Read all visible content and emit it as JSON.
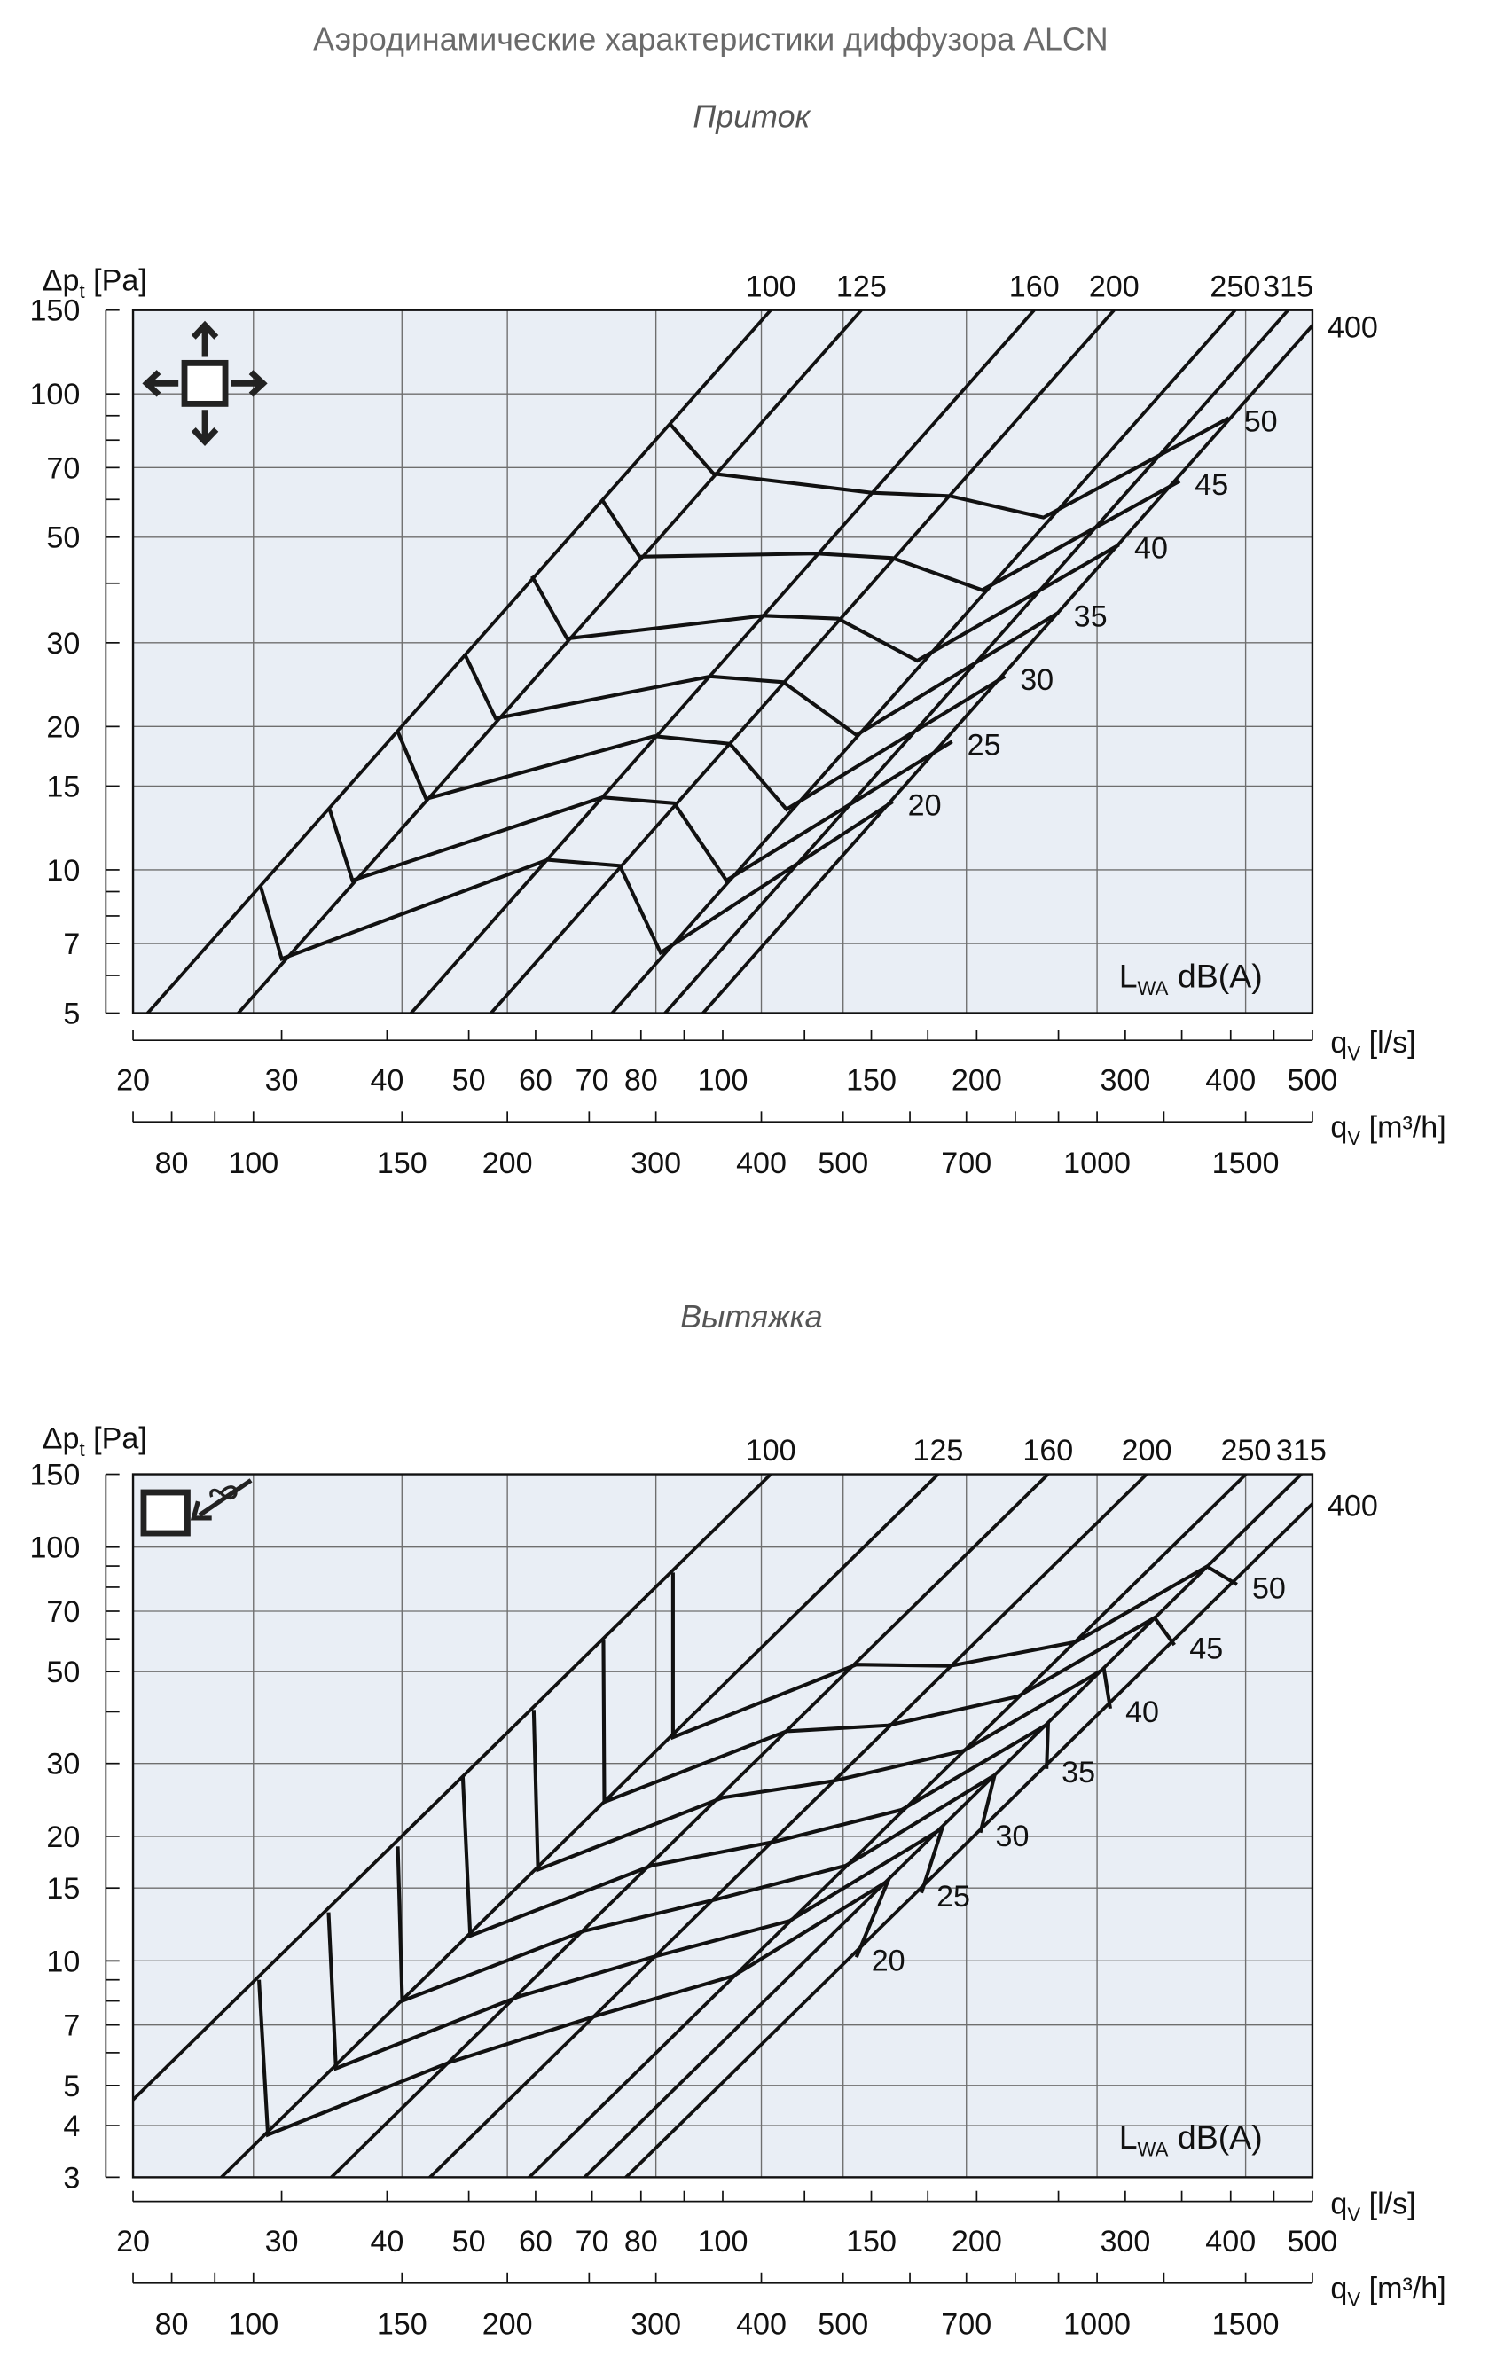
{
  "title": "Аэродинамические характеристики диффузора ALCN",
  "colors": {
    "plot_background": "#e9eef5",
    "grid": "#6e6e6e",
    "lines": "#111111",
    "title": "#6a6a6a"
  },
  "chart_data": [
    {
      "type": "line",
      "subtitle": "Приток",
      "icon": "supply-four-way-arrows-icon",
      "ylabel": {
        "main": "Δp",
        "sub": "t",
        "unit": " [Pa]"
      },
      "xlabel_ls": {
        "main": "q",
        "sub": "V",
        "unit": " [l/s]"
      },
      "xlabel_m3h": {
        "main": "q",
        "sub": "V",
        "unit": " [m³/h]"
      },
      "legend": {
        "main": "L",
        "sub": "WA",
        "unit": " dB(A)"
      },
      "scale": "log-log",
      "xlim": [
        20,
        500
      ],
      "ylim": [
        5,
        150
      ],
      "y_ticks": [
        5,
        7,
        10,
        15,
        20,
        30,
        50,
        70,
        100,
        150
      ],
      "y_minor_ticks": [
        6,
        8,
        9,
        40,
        60,
        80,
        90
      ],
      "x_ticks_ls": [
        20,
        30,
        40,
        50,
        60,
        70,
        80,
        100,
        150,
        200,
        300,
        400,
        500
      ],
      "x_minor_ticks_ls": [
        90,
        125,
        175,
        250,
        350,
        450
      ],
      "x_ticks_m3h": [
        80,
        100,
        150,
        200,
        300,
        400,
        500,
        700,
        1000,
        1500
      ],
      "x_minor_ticks_m3h": [
        90,
        250,
        600,
        800,
        900,
        1200
      ],
      "x_grid_m3h": [
        100,
        150,
        200,
        300,
        400,
        500,
        700,
        1000,
        1500
      ],
      "grid": true,
      "duct_sizes": [
        {
          "name": "100",
          "q_at_150Pa": 114
        },
        {
          "name": "125",
          "q_at_150Pa": 146
        },
        {
          "name": "160",
          "q_at_150Pa": 234
        },
        {
          "name": "200",
          "q_at_150Pa": 291
        },
        {
          "name": "250",
          "q_at_150Pa": 405
        },
        {
          "name": "315",
          "q_at_150Pa": 468
        },
        {
          "name": "400",
          "q_at_150Pa": 519
        }
      ],
      "series": [
        {
          "name": "20",
          "points": [
            [
              28.3,
              9.3
            ],
            [
              30,
              6.5
            ],
            [
              62,
              10.5
            ],
            [
              75.5,
              10.2
            ],
            [
              84.4,
              6.7
            ],
            [
              159,
              13.9
            ]
          ]
        },
        {
          "name": "25",
          "points": [
            [
              34.2,
              13.4
            ],
            [
              36.4,
              9.5
            ],
            [
              72,
              14.2
            ],
            [
              87.6,
              13.8
            ],
            [
              101,
              9.5
            ],
            [
              187,
              18.6
            ]
          ]
        },
        {
          "name": "30",
          "points": [
            [
              41.2,
              19.5
            ],
            [
              44.5,
              14.1
            ],
            [
              83,
              19.1
            ],
            [
              102,
              18.4
            ],
            [
              119,
              13.4
            ],
            [
              216,
              25.5
            ]
          ]
        },
        {
          "name": "35",
          "points": [
            [
              49.4,
              28.5
            ],
            [
              53.8,
              20.8
            ],
            [
              96.7,
              25.5
            ],
            [
              118,
              24.8
            ],
            [
              144,
              19.2
            ],
            [
              250,
              34.7
            ]
          ]
        },
        {
          "name": "40",
          "points": [
            [
              59.4,
              41.4
            ],
            [
              65.4,
              30.6
            ],
            [
              112,
              34.2
            ],
            [
              137,
              33.7
            ],
            [
              170,
              27.5
            ],
            [
              295,
              48.2
            ]
          ]
        },
        {
          "name": "45",
          "points": [
            [
              71.9,
              60
            ],
            [
              79.7,
              45.5
            ],
            [
              129,
              46.2
            ],
            [
              159,
              45.2
            ],
            [
              203,
              38.7
            ],
            [
              348,
              65.6
            ]
          ]
        },
        {
          "name": "50",
          "points": [
            [
              86.6,
              86.5
            ],
            [
              97.5,
              68
            ],
            [
              150,
              62
            ],
            [
              186,
              61
            ],
            [
              240,
              55
            ],
            [
              398,
              89
            ]
          ]
        }
      ]
    },
    {
      "type": "line",
      "subtitle": "Вытяжка",
      "icon": "exhaust-inlet-arrow-icon",
      "ylabel": {
        "main": "Δp",
        "sub": "t",
        "unit": " [Pa]"
      },
      "xlabel_ls": {
        "main": "q",
        "sub": "V",
        "unit": " [l/s]"
      },
      "xlabel_m3h": {
        "main": "q",
        "sub": "V",
        "unit": " [m³/h]"
      },
      "legend": {
        "main": "L",
        "sub": "WA",
        "unit": " dB(A)"
      },
      "scale": "log-log",
      "xlim": [
        20,
        500
      ],
      "ylim": [
        3,
        150
      ],
      "y_ticks": [
        3,
        4,
        5,
        7,
        10,
        15,
        20,
        30,
        50,
        70,
        100,
        150
      ],
      "y_minor_ticks": [
        6,
        8,
        9,
        40,
        60,
        80,
        90
      ],
      "x_ticks_ls": [
        20,
        30,
        40,
        50,
        60,
        70,
        80,
        100,
        150,
        200,
        300,
        400,
        500
      ],
      "x_minor_ticks_ls": [
        90,
        125,
        175,
        250,
        350,
        450
      ],
      "x_ticks_m3h": [
        80,
        100,
        150,
        200,
        300,
        400,
        500,
        700,
        1000,
        1500
      ],
      "x_minor_ticks_m3h": [
        90,
        250,
        600,
        800,
        900,
        1200
      ],
      "x_grid_m3h": [
        100,
        150,
        200,
        300,
        400,
        500,
        700,
        1000,
        1500
      ],
      "grid": true,
      "duct_sizes": [
        {
          "name": "100",
          "q_at_150Pa": 114
        },
        {
          "name": "125",
          "q_at_150Pa": 180
        },
        {
          "name": "160",
          "q_at_150Pa": 243
        },
        {
          "name": "200",
          "q_at_150Pa": 318
        },
        {
          "name": "250",
          "q_at_150Pa": 417
        },
        {
          "name": "315",
          "q_at_150Pa": 485
        },
        {
          "name": "400",
          "q_at_150Pa": 543
        }
      ],
      "series": [
        {
          "name": "20",
          "points": [
            [
              28.2,
              9.0
            ],
            [
              28.9,
              3.8
            ],
            [
              47.6,
              5.7
            ],
            [
              71.3,
              7.4
            ],
            [
              103,
              9.2
            ],
            [
              157,
              15.6
            ],
            [
              144,
              10.2
            ]
          ]
        },
        {
          "name": "25",
          "points": [
            [
              34.1,
              13.1
            ],
            [
              34.8,
              5.5
            ],
            [
              57.3,
              8.2
            ],
            [
              82.4,
              10.2
            ],
            [
              120,
              12.5
            ],
            [
              182,
              20.9
            ],
            [
              172,
              14.6
            ]
          ]
        },
        {
          "name": "30",
          "points": [
            [
              41.2,
              18.9
            ],
            [
              41.7,
              8.0
            ],
            [
              68.4,
              11.8
            ],
            [
              98.4,
              14.1
            ],
            [
              140,
              17.0
            ],
            [
              210,
              28.1
            ],
            [
              202,
              20.4
            ]
          ]
        },
        {
          "name": "35",
          "points": [
            [
              49.2,
              27.9
            ],
            [
              50.2,
              11.5
            ],
            [
              82.4,
              17.0
            ],
            [
              115,
              19.4
            ],
            [
              163,
              23.2
            ],
            [
              243,
              37.4
            ],
            [
              242,
              29.1
            ]
          ]
        },
        {
          "name": "40",
          "points": [
            [
              59.7,
              40.4
            ],
            [
              60.4,
              16.6
            ],
            [
              100,
              24.8
            ],
            [
              135,
              27.2
            ],
            [
              193,
              32.2
            ],
            [
              283,
              50.7
            ],
            [
              288,
              40.7
            ]
          ]
        },
        {
          "name": "45",
          "points": [
            [
              72.2,
              59.5
            ],
            [
              72.4,
              24.2
            ],
            [
              119,
              35.9
            ],
            [
              157,
              37.1
            ],
            [
              224,
              43.6
            ],
            [
              325,
              67.5
            ],
            [
              343,
              58
            ]
          ]
        },
        {
          "name": "50",
          "points": [
            [
              87.3,
              86.8
            ],
            [
              87.3,
              34.7
            ],
            [
              144,
              52
            ],
            [
              186,
              51.6
            ],
            [
              262,
              59
            ],
            [
              375,
              89.8
            ],
            [
              407,
              81.2
            ]
          ]
        }
      ]
    }
  ]
}
